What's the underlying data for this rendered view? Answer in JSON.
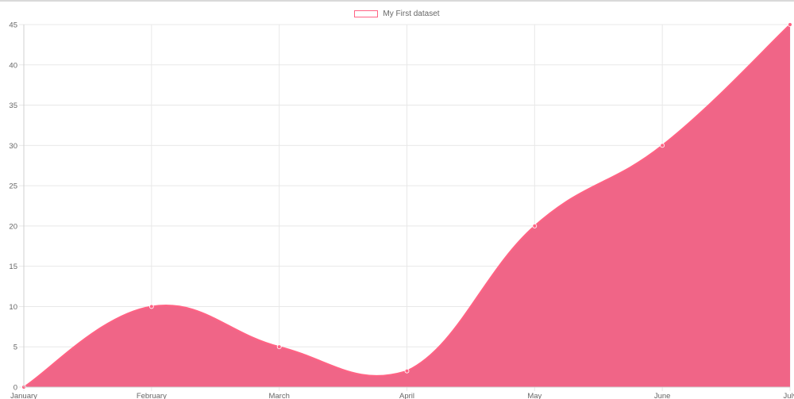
{
  "chart_data": {
    "type": "area",
    "categories": [
      "January",
      "February",
      "March",
      "April",
      "May",
      "June",
      "July"
    ],
    "series": [
      {
        "name": "My First dataset",
        "values": [
          0,
          10,
          5,
          2,
          20,
          30,
          45
        ]
      }
    ],
    "ylim": [
      0,
      45
    ],
    "y_ticks": [
      0,
      5,
      10,
      15,
      20,
      25,
      30,
      35,
      40,
      45
    ],
    "grid": true,
    "legend_position": "top-center",
    "colors": {
      "fill": "#f06587",
      "line": "#ff6384",
      "grid": "#e8e8e8",
      "axis": "#d0d0d0",
      "tick_text": "#666666"
    }
  }
}
